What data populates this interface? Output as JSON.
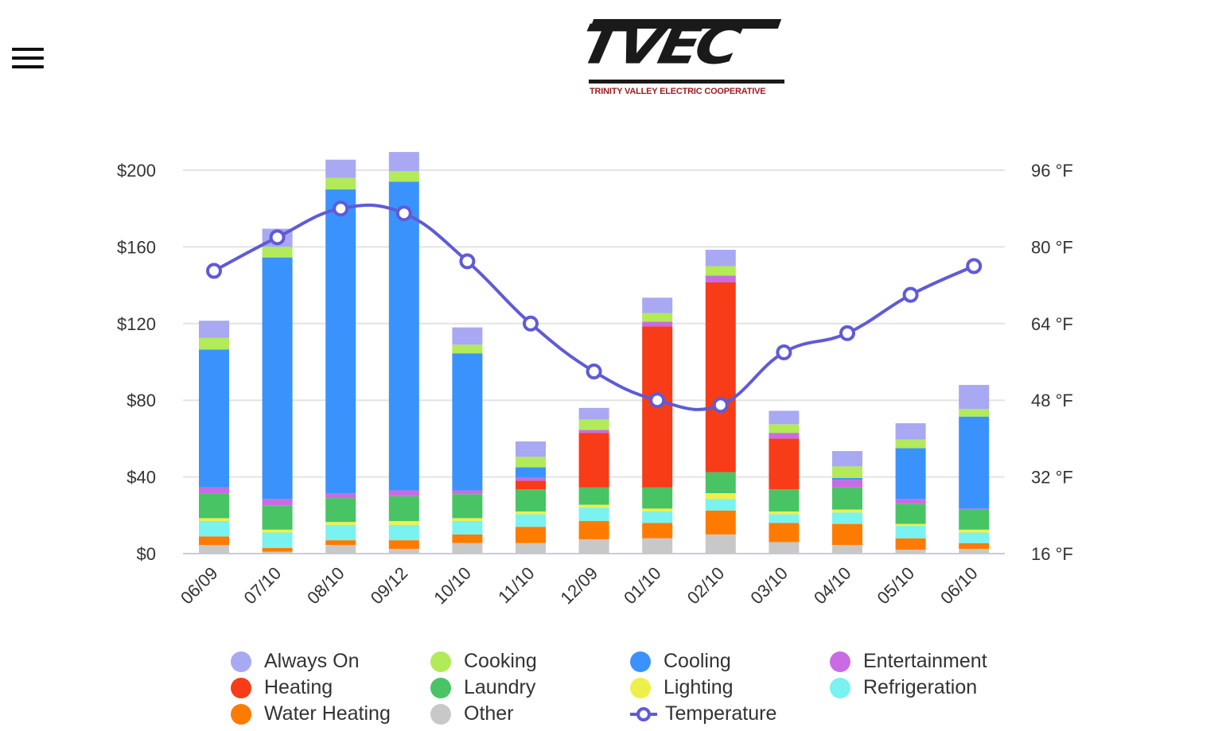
{
  "header": {
    "logo_text": "TVEC",
    "logo_subtitle": "TRINITY VALLEY ELECTRIC COOPERATIVE",
    "menu_icon": "hamburger-icon"
  },
  "chart_data": {
    "type": "bar",
    "stacked": true,
    "categories": [
      "06/09",
      "07/10",
      "08/10",
      "09/12",
      "10/10",
      "11/10",
      "12/09",
      "01/10",
      "02/10",
      "03/10",
      "04/10",
      "05/10",
      "06/10"
    ],
    "y_left": {
      "ticks": [
        "$0",
        "$40",
        "$80",
        "$120",
        "$160",
        "$200"
      ],
      "range": [
        0,
        200
      ]
    },
    "y_right": {
      "ticks": [
        "16 °F",
        "32 °F",
        "48 °F",
        "64 °F",
        "80 °F",
        "96 °F"
      ],
      "range": [
        16,
        96
      ]
    },
    "grid": true,
    "legend_position": "bottom",
    "series": [
      {
        "name": "Other",
        "color": "#c8c8c8",
        "values": [
          4.5,
          1,
          4.5,
          2.5,
          5.5,
          5.5,
          7.5,
          8,
          10,
          6,
          4.5,
          2,
          2.5
        ]
      },
      {
        "name": "Water Heating",
        "color": "#ff7b00",
        "values": [
          4.5,
          2,
          2.5,
          4.5,
          4.5,
          8.5,
          9.5,
          8,
          12.5,
          10,
          11,
          6,
          3
        ]
      },
      {
        "name": "Refrigeration",
        "color": "#79f2f0",
        "values": [
          8,
          8,
          8,
          8,
          7,
          6.5,
          7,
          6,
          6,
          4.5,
          6,
          6.5,
          5.5
        ]
      },
      {
        "name": "Lighting",
        "color": "#eef04a",
        "values": [
          1.5,
          1.5,
          1.5,
          2,
          1.5,
          1.5,
          1.5,
          1.5,
          3,
          1.5,
          1.5,
          1,
          1.5
        ]
      },
      {
        "name": "Laundry",
        "color": "#48c464",
        "values": [
          13,
          12.5,
          12.5,
          13,
          12.5,
          11.5,
          9,
          11,
          11,
          11.5,
          11.5,
          10.5,
          10.5
        ]
      },
      {
        "name": "Heating",
        "color": "#f73c17",
        "values": [
          0,
          0,
          0,
          0,
          0,
          4.5,
          28.5,
          84,
          99,
          26.5,
          0,
          0,
          0
        ]
      },
      {
        "name": "Entertainment",
        "color": "#c96be3",
        "values": [
          3,
          3.5,
          2.5,
          3,
          2,
          1.5,
          1.5,
          2.5,
          3.5,
          3,
          4,
          2.5,
          0.5
        ]
      },
      {
        "name": "Cooling",
        "color": "#3a93fc",
        "values": [
          72,
          126,
          158.5,
          161,
          71.5,
          5.5,
          0,
          0,
          0,
          0,
          1,
          26.5,
          48
        ]
      },
      {
        "name": "Cooking",
        "color": "#b2ea58",
        "values": [
          6,
          5.5,
          6,
          5.5,
          4.5,
          5.5,
          5.5,
          4.5,
          5,
          4.5,
          6,
          4.5,
          4
        ]
      },
      {
        "name": "Always On",
        "color": "#a9a8f2",
        "values": [
          9,
          9.5,
          9.5,
          10,
          9,
          8,
          6,
          8,
          8.5,
          7,
          8,
          8.5,
          12.5
        ]
      }
    ],
    "line_series": {
      "name": "Temperature",
      "color": "#5f5bd6",
      "axis": "right",
      "values": [
        75,
        82,
        88,
        87,
        77,
        64,
        54,
        48,
        47,
        58,
        62,
        70,
        76
      ]
    }
  },
  "legend": [
    {
      "label": "Always On",
      "color": "#a9a8f2"
    },
    {
      "label": "Cooking",
      "color": "#b2ea58"
    },
    {
      "label": "Cooling",
      "color": "#3a93fc"
    },
    {
      "label": "Entertainment",
      "color": "#c96be3"
    },
    {
      "label": "Heating",
      "color": "#f73c17"
    },
    {
      "label": "Laundry",
      "color": "#48c464"
    },
    {
      "label": "Lighting",
      "color": "#eef04a"
    },
    {
      "label": "Refrigeration",
      "color": "#79f2f0"
    },
    {
      "label": "Water Heating",
      "color": "#ff7b00"
    },
    {
      "label": "Other",
      "color": "#c8c8c8"
    },
    {
      "label": "Temperature",
      "color": "#5f5bd6",
      "line": true
    }
  ]
}
